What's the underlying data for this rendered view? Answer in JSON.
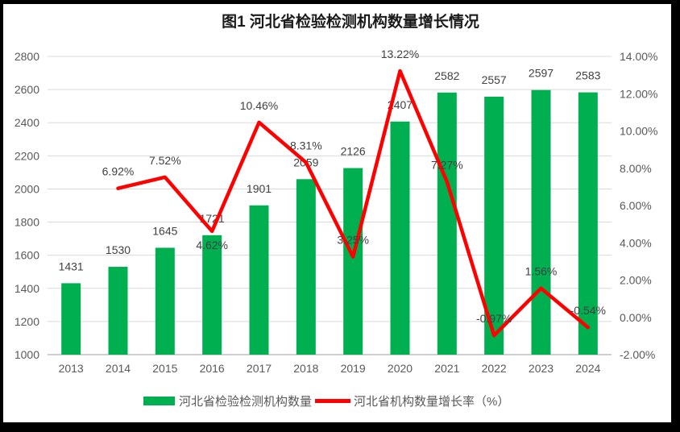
{
  "title": "图1  河北省检验检测机构数量增长情况",
  "legend": {
    "items": [
      {
        "marker": "bar-swatch",
        "label": "河北省检验检测机构数量",
        "color": "#00B050"
      },
      {
        "marker": "line-swatch",
        "label": "河北省机构数量增长率（%）",
        "color": "#FF0000"
      }
    ]
  },
  "chart_data": {
    "type": "combo-bar-line",
    "title": "图1  河北省检验检测机构数量增长情况",
    "categories": [
      "2013",
      "2014",
      "2015",
      "2016",
      "2017",
      "2018",
      "2019",
      "2020",
      "2021",
      "2022",
      "2023",
      "2024"
    ],
    "series": [
      {
        "name": "河北省检验检测机构数量",
        "type": "bar",
        "axis": "left",
        "color": "#00B050",
        "values": [
          1431,
          1530,
          1645,
          1721,
          1901,
          2059,
          2126,
          2407,
          2582,
          2557,
          2597,
          2583
        ],
        "data_labels": [
          "1431",
          "1530",
          "1645",
          "1721",
          "1901",
          "2059",
          "2126",
          "2407",
          "2582",
          "2557",
          "2597",
          "2583"
        ]
      },
      {
        "name": "河北省机构数量增长率（%）",
        "type": "line",
        "axis": "right",
        "color": "#FF0000",
        "values": [
          null,
          6.92,
          7.52,
          4.62,
          10.46,
          8.31,
          3.25,
          13.22,
          7.27,
          -0.97,
          1.56,
          -0.54
        ],
        "data_labels": [
          "",
          "6.92%",
          "7.52%",
          "4.62%",
          "10.46%",
          "8.31%",
          "3.25%",
          "13.22%",
          "7.27%",
          "-0.97%",
          "1.56%",
          "-0.54%"
        ],
        "label_position": [
          "",
          "above",
          "above",
          "below",
          "above",
          "above",
          "above",
          "above",
          "above",
          "above",
          "above",
          "above"
        ]
      }
    ],
    "left_axis": {
      "min": 1000,
      "max": 2800,
      "step": 200,
      "tick_labels": [
        "1000",
        "1200",
        "1400",
        "1600",
        "1800",
        "2000",
        "2200",
        "2400",
        "2600",
        "2800"
      ]
    },
    "right_axis": {
      "min": -2,
      "max": 14,
      "step": 2,
      "tick_labels": [
        "-2.00%",
        "0.00%",
        "2.00%",
        "4.00%",
        "6.00%",
        "8.00%",
        "10.00%",
        "12.00%",
        "14.00%"
      ]
    },
    "grid": true,
    "legend_position": "bottom"
  },
  "colors": {
    "bar_green": "#00B050",
    "line_red": "#FF0000",
    "gridline": "#D9D9D9",
    "axis_line": "#BFBFBF",
    "tick_text": "#595959",
    "data_label_text": "#404040",
    "title_text": "#1a1a1a",
    "frame": "#000000",
    "background": "#FFFFFF"
  }
}
